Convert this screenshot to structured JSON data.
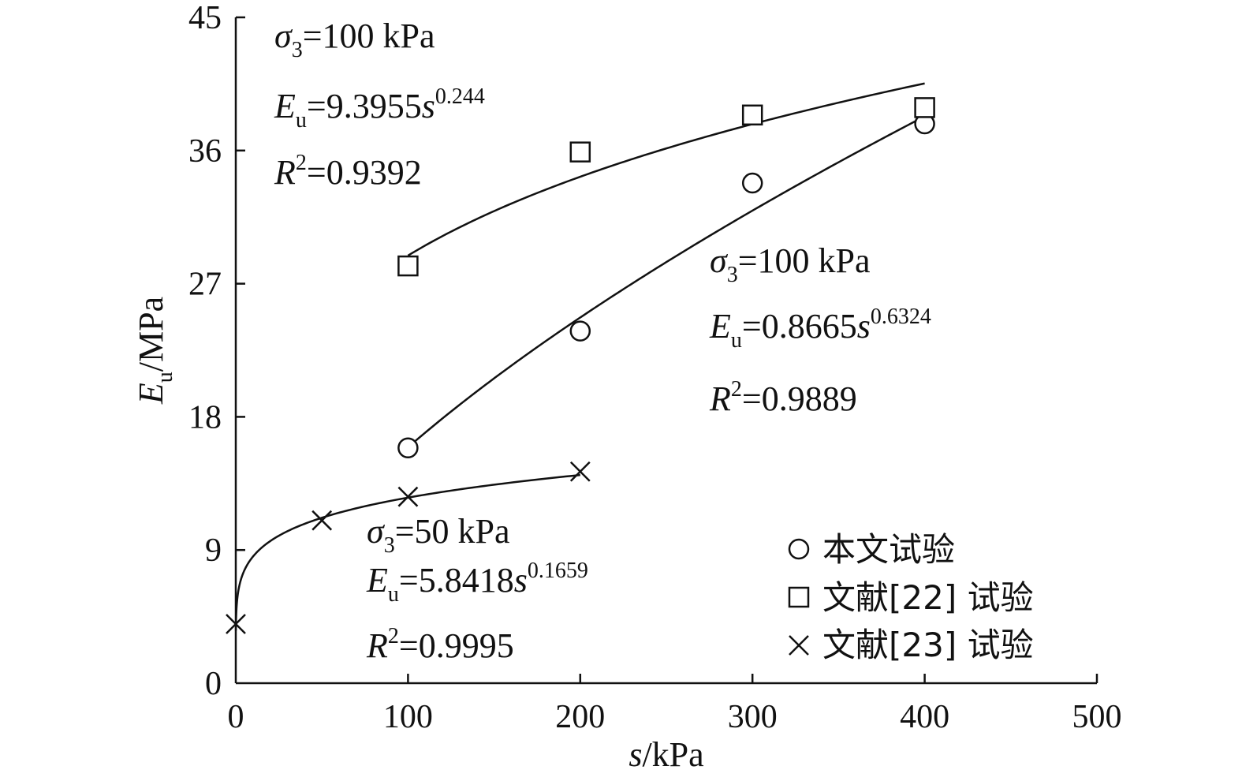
{
  "chart_data": {
    "type": "scatter",
    "xlabel": {
      "var": "s",
      "unit": "/kPa"
    },
    "ylabel": {
      "var": "E",
      "sub": "u",
      "unit": "/MPa"
    },
    "xlim": [
      0,
      500
    ],
    "ylim": [
      0,
      45
    ],
    "xticks": [
      0,
      100,
      200,
      300,
      400,
      500
    ],
    "yticks": [
      0,
      9,
      18,
      27,
      36,
      45
    ],
    "grid": false,
    "legend_position": "bottom-right",
    "series": [
      {
        "name": "本文试验",
        "marker": "circle",
        "x": [
          100,
          200,
          300,
          400
        ],
        "y": [
          15.9,
          23.8,
          33.8,
          37.8
        ],
        "fit": {
          "a": 0.8665,
          "b": 0.6324,
          "x_range": [
            100,
            400
          ]
        }
      },
      {
        "name": "文献[22] 试验",
        "marker": "square",
        "x": [
          100,
          200,
          300,
          400
        ],
        "y": [
          28.2,
          35.9,
          38.4,
          38.9
        ],
        "fit": {
          "a": 9.3955,
          "b": 0.244,
          "x_range": [
            100,
            400
          ]
        }
      },
      {
        "name": "文献[23] 试验",
        "marker": "x",
        "x": [
          0,
          50,
          100,
          200
        ],
        "y": [
          4.0,
          11.0,
          12.6,
          14.3
        ],
        "fit": {
          "a": 5.8418,
          "b": 0.1659,
          "x_range": [
            0.05,
            200
          ]
        }
      }
    ],
    "annotations": [
      {
        "sigma": "σ",
        "sigma_sub": "3",
        "sigma_val": "=100 kPa",
        "e": "E",
        "e_sub": "u",
        "e_eq": "=9.3955",
        "e_var": "s",
        "e_exp": "0.244",
        "r": "R",
        "r_sup": "2",
        "r_val": "=0.9392"
      },
      {
        "sigma": "σ",
        "sigma_sub": "3",
        "sigma_val": "=100 kPa",
        "e": "E",
        "e_sub": "u",
        "e_eq": "=0.8665",
        "e_var": "s",
        "e_exp": "0.6324",
        "r": "R",
        "r_sup": "2",
        "r_val": "=0.9889"
      },
      {
        "sigma": "σ",
        "sigma_sub": "3",
        "sigma_val": "=50 kPa",
        "e": "E",
        "e_sub": "u",
        "e_eq": "=5.8418",
        "e_var": "s",
        "e_exp": "0.1659",
        "r": "R",
        "r_sup": "2",
        "r_val": "=0.9995"
      }
    ]
  }
}
